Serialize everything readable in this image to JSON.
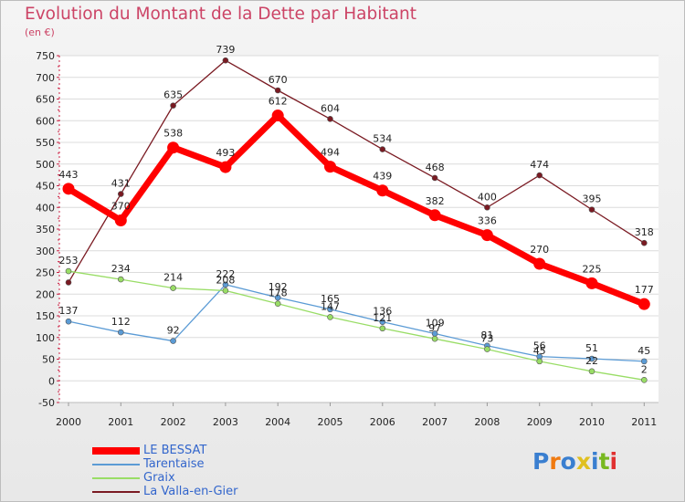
{
  "title": "Evolution du Montant de la Dette par Habitant",
  "subtitle": "(en €)",
  "brand": {
    "text": "Proxiti",
    "letters": [
      {
        "ch": "P",
        "color": "#3a7fd0"
      },
      {
        "ch": "r",
        "color": "#f07a10"
      },
      {
        "ch": "o",
        "color": "#3a7fd0"
      },
      {
        "ch": "x",
        "color": "#e0c020"
      },
      {
        "ch": "i",
        "color": "#3a7fd0"
      },
      {
        "ch": "t",
        "color": "#78b820"
      },
      {
        "ch": "i",
        "color": "#e03030"
      }
    ]
  },
  "chart_data": {
    "type": "line",
    "title": "Evolution du Montant de la Dette par Habitant",
    "subtitle": "(en €)",
    "xlabel": "",
    "ylabel": "",
    "ylim": [
      -50,
      750
    ],
    "yticks": [
      -50,
      0,
      50,
      100,
      150,
      200,
      250,
      300,
      350,
      400,
      450,
      500,
      550,
      600,
      650,
      700,
      750
    ],
    "categories": [
      "2000",
      "2001",
      "2002",
      "2003",
      "2004",
      "2005",
      "2006",
      "2007",
      "2008",
      "2009",
      "2010",
      "2011"
    ],
    "grid": "horizontal",
    "legend_position": "bottom-left",
    "series": [
      {
        "name": "La Valla-en-Gier",
        "color": "#7a1a22",
        "values": [
          227,
          431,
          635,
          739,
          670,
          604,
          534,
          468,
          400,
          474,
          395,
          318
        ],
        "labels": [
          "",
          "431",
          "635",
          "739",
          "670",
          "604",
          "534",
          "468",
          "400",
          "474",
          "395",
          "318"
        ]
      },
      {
        "name": "Tarentaise",
        "color": "#5b9bd5",
        "values": [
          137,
          112,
          92,
          222,
          192,
          165,
          136,
          109,
          81,
          56,
          51,
          45
        ],
        "labels": [
          "137",
          "112",
          "92",
          "222",
          "192",
          "165",
          "136",
          "109",
          "81",
          "56",
          "51",
          "45"
        ]
      },
      {
        "name": "Graix",
        "color": "#99dd66",
        "values": [
          253,
          234,
          214,
          208,
          178,
          147,
          121,
          97,
          73,
          45,
          22,
          2
        ],
        "labels": [
          "253",
          "234",
          "214",
          "208",
          "178",
          "147",
          "121",
          "97",
          "73",
          "45",
          "22",
          "2"
        ]
      },
      {
        "name": "LE BESSAT",
        "color": "#ff0000",
        "values": [
          443,
          370,
          538,
          493,
          612,
          494,
          439,
          382,
          336,
          270,
          225,
          177
        ],
        "labels": [
          "443",
          "370",
          "538",
          "493",
          "612",
          "494",
          "439",
          "382",
          "336",
          "270",
          "225",
          "177"
        ]
      }
    ],
    "legend": [
      {
        "name": "LE BESSAT",
        "color": "#ff0000",
        "width": 8
      },
      {
        "name": "Tarentaise",
        "color": "#5b9bd5",
        "width": 2
      },
      {
        "name": "Graix",
        "color": "#99dd66",
        "width": 2
      },
      {
        "name": "La Valla-en-Gier",
        "color": "#7a1a22",
        "width": 2
      }
    ]
  }
}
